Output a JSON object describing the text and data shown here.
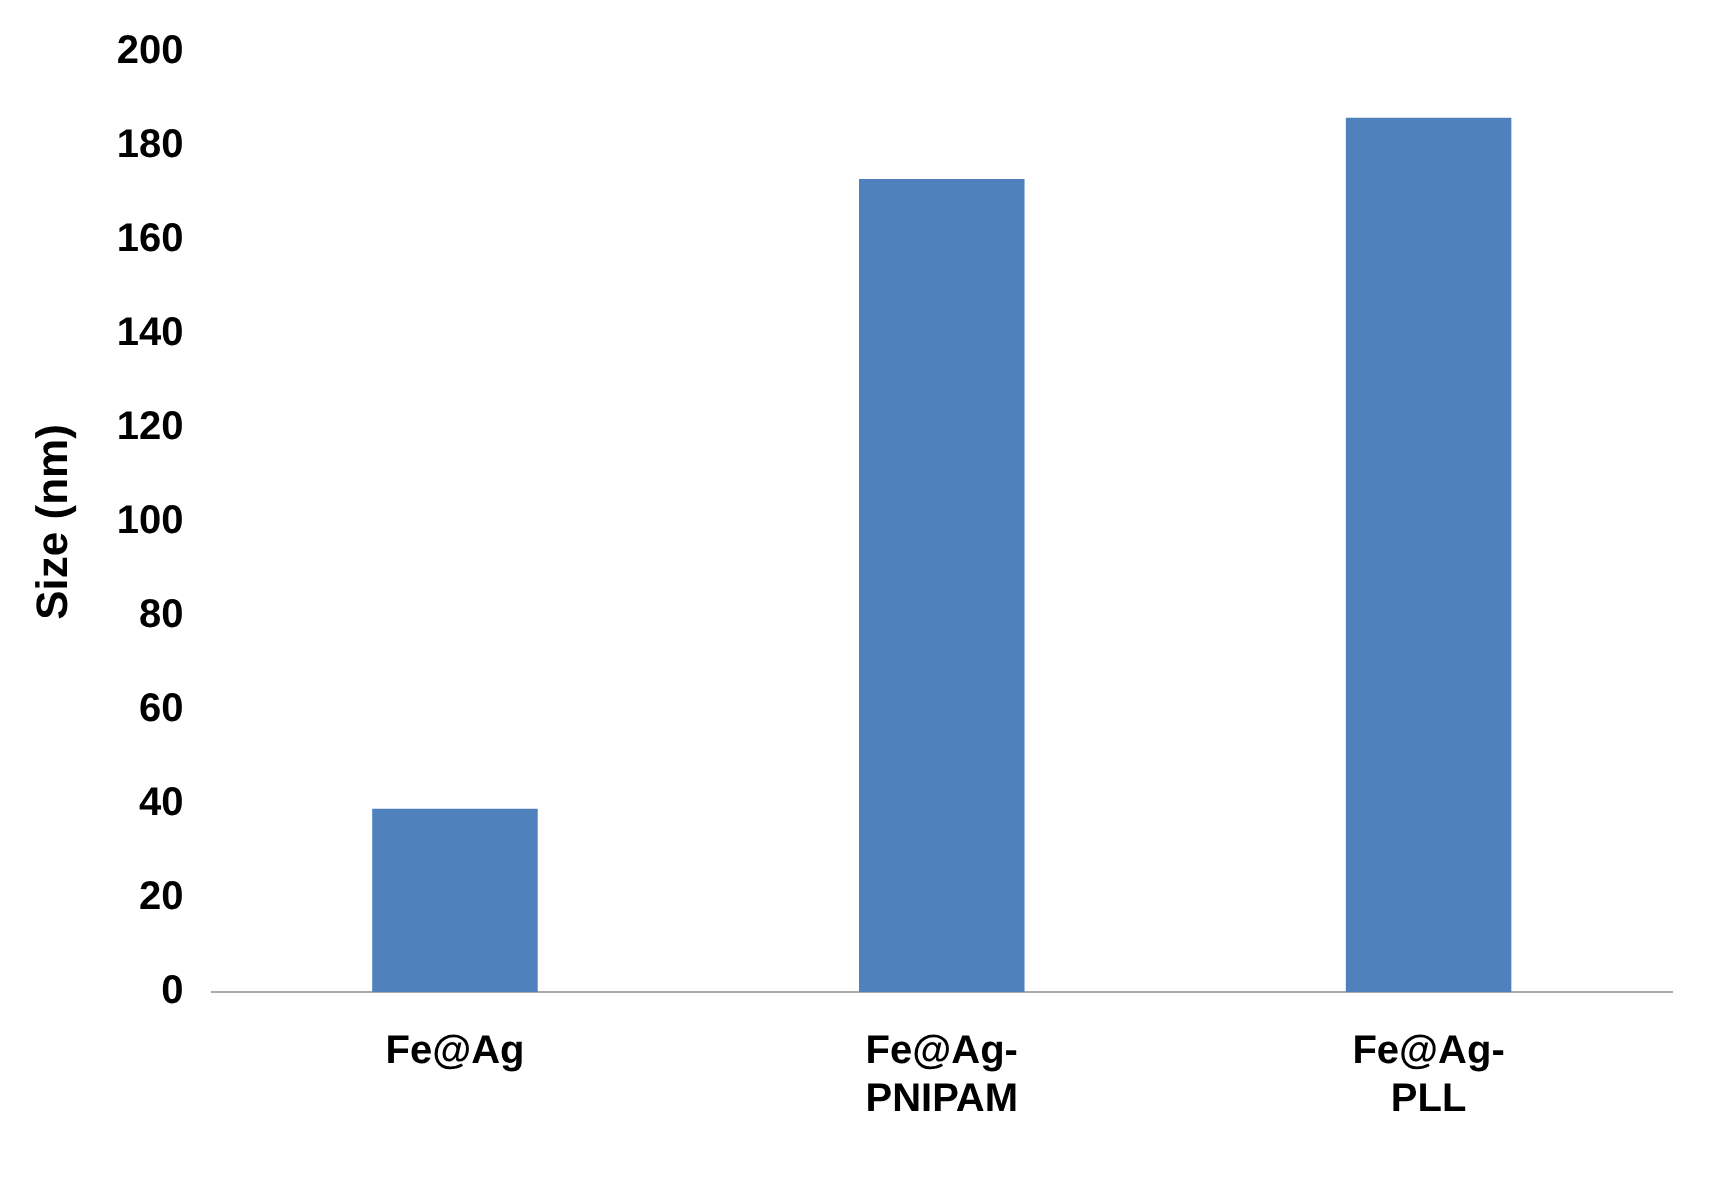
{
  "chart_data": {
    "type": "bar",
    "ylabel": "Size (nm)",
    "categories": [
      "Fe@Ag",
      "Fe@Ag-PNIPAM",
      "Fe@Ag-PLL"
    ],
    "values": [
      39,
      173,
      186
    ],
    "color": "#4f81bd",
    "ylim": [
      0,
      200
    ],
    "yticks": [
      0,
      20,
      40,
      60,
      80,
      100,
      120,
      140,
      160,
      180,
      200
    ],
    "grid": false,
    "legend": false
  }
}
